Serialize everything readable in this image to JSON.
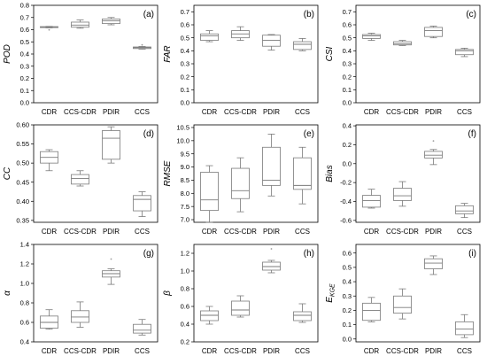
{
  "chart_data": [
    {
      "type": "box",
      "panel": "(a)",
      "ylabel": "POD",
      "categories": [
        "CDR",
        "CCS-CDR",
        "PDIR",
        "CCS"
      ],
      "ylim": [
        0.0,
        0.8
      ],
      "yticks": [
        "0.0",
        "0.1",
        "0.2",
        "0.3",
        "0.4",
        "0.5",
        "0.6",
        "0.7",
        "0.8"
      ],
      "boxes": [
        {
          "category": "CDR",
          "min": 0.615,
          "q1": 0.617,
          "median": 0.622,
          "q3": 0.625,
          "max": 0.627,
          "outliers": [
            0.598
          ]
        },
        {
          "category": "CCS-CDR",
          "min": 0.612,
          "q1": 0.62,
          "median": 0.638,
          "q3": 0.662,
          "max": 0.68,
          "outliers": []
        },
        {
          "category": "PDIR",
          "min": 0.64,
          "q1": 0.65,
          "median": 0.672,
          "q3": 0.688,
          "max": 0.7,
          "outliers": []
        },
        {
          "category": "CCS",
          "min": 0.44,
          "q1": 0.445,
          "median": 0.452,
          "q3": 0.458,
          "max": 0.462,
          "outliers": [
            0.475
          ]
        }
      ]
    },
    {
      "type": "box",
      "panel": "(b)",
      "ylabel": "FAR",
      "categories": [
        "CDR",
        "CCS-CDR",
        "PDIR",
        "CCS"
      ],
      "ylim": [
        0.0,
        0.75
      ],
      "yticks": [
        "0.0",
        "0.1",
        "0.2",
        "0.3",
        "0.4",
        "0.5",
        "0.6",
        "0.7"
      ],
      "boxes": [
        {
          "category": "CDR",
          "min": 0.47,
          "q1": 0.48,
          "median": 0.515,
          "q3": 0.53,
          "max": 0.555,
          "outliers": []
        },
        {
          "category": "CCS-CDR",
          "min": 0.48,
          "q1": 0.5,
          "median": 0.53,
          "q3": 0.555,
          "max": 0.585,
          "outliers": []
        },
        {
          "category": "PDIR",
          "min": 0.405,
          "q1": 0.435,
          "median": 0.48,
          "q3": 0.52,
          "max": 0.525,
          "outliers": []
        },
        {
          "category": "CCS",
          "min": 0.4,
          "q1": 0.41,
          "median": 0.45,
          "q3": 0.47,
          "max": 0.495,
          "outliers": []
        }
      ]
    },
    {
      "type": "box",
      "panel": "(c)",
      "ylabel": "CSI",
      "categories": [
        "CDR",
        "CCS-CDR",
        "PDIR",
        "CCS"
      ],
      "ylim": [
        0.0,
        0.75
      ],
      "yticks": [
        "0.0",
        "0.1",
        "0.2",
        "0.3",
        "0.4",
        "0.5",
        "0.6",
        "0.7"
      ],
      "boxes": [
        {
          "category": "CDR",
          "min": 0.48,
          "q1": 0.495,
          "median": 0.515,
          "q3": 0.525,
          "max": 0.535,
          "outliers": []
        },
        {
          "category": "CCS-CDR",
          "min": 0.44,
          "q1": 0.445,
          "median": 0.455,
          "q3": 0.47,
          "max": 0.48,
          "outliers": []
        },
        {
          "category": "PDIR",
          "min": 0.5,
          "q1": 0.51,
          "median": 0.555,
          "q3": 0.58,
          "max": 0.59,
          "outliers": []
        },
        {
          "category": "CCS",
          "min": 0.355,
          "q1": 0.37,
          "median": 0.4,
          "q3": 0.41,
          "max": 0.42,
          "outliers": []
        }
      ]
    },
    {
      "type": "box",
      "panel": "(d)",
      "ylabel": "CC",
      "categories": [
        "CDR",
        "CCS-CDR",
        "PDIR",
        "CCS"
      ],
      "ylim": [
        0.345,
        0.6
      ],
      "yticks": [
        "0.35",
        "0.40",
        "0.45",
        "0.50",
        "0.55",
        "0.60"
      ],
      "boxes": [
        {
          "category": "CDR",
          "min": 0.48,
          "q1": 0.5,
          "median": 0.515,
          "q3": 0.53,
          "max": 0.535,
          "outliers": []
        },
        {
          "category": "CCS-CDR",
          "min": 0.44,
          "q1": 0.445,
          "median": 0.46,
          "q3": 0.47,
          "max": 0.48,
          "outliers": []
        },
        {
          "category": "PDIR",
          "min": 0.5,
          "q1": 0.51,
          "median": 0.565,
          "q3": 0.585,
          "max": 0.595,
          "outliers": []
        },
        {
          "category": "CCS",
          "min": 0.36,
          "q1": 0.375,
          "median": 0.405,
          "q3": 0.415,
          "max": 0.425,
          "outliers": []
        }
      ]
    },
    {
      "type": "box",
      "panel": "(e)",
      "ylabel": "RMSE",
      "categories": [
        "CDR",
        "CCS-CDR",
        "PDIR",
        "CCS"
      ],
      "ylim": [
        6.9,
        10.6
      ],
      "yticks": [
        "7.0",
        "7.5",
        "8.0",
        "8.5",
        "9.0",
        "9.5",
        "10.0",
        "10.5"
      ],
      "boxes": [
        {
          "category": "CDR",
          "min": 6.9,
          "q1": 7.35,
          "median": 7.75,
          "q3": 8.8,
          "max": 9.05,
          "outliers": []
        },
        {
          "category": "CCS-CDR",
          "min": 7.3,
          "q1": 7.8,
          "median": 8.1,
          "q3": 8.95,
          "max": 9.35,
          "outliers": []
        },
        {
          "category": "PDIR",
          "min": 7.9,
          "q1": 8.3,
          "median": 8.5,
          "q3": 9.75,
          "max": 10.25,
          "outliers": []
        },
        {
          "category": "CCS",
          "min": 7.6,
          "q1": 8.15,
          "median": 8.3,
          "q3": 9.35,
          "max": 9.75,
          "outliers": []
        }
      ]
    },
    {
      "type": "box",
      "panel": "(f)",
      "ylabel": "Bias",
      "categories": [
        "CDR",
        "CCS-CDR",
        "PDIR",
        "CCS"
      ],
      "ylim": [
        -0.62,
        0.41
      ],
      "yticks": [
        "-0.6",
        "-0.4",
        "-0.2",
        "0.0",
        "0.2",
        "0.4"
      ],
      "boxes": [
        {
          "category": "CDR",
          "min": -0.47,
          "q1": -0.46,
          "median": -0.39,
          "q3": -0.335,
          "max": -0.27,
          "outliers": []
        },
        {
          "category": "CCS-CDR",
          "min": -0.45,
          "q1": -0.39,
          "median": -0.34,
          "q3": -0.26,
          "max": -0.19,
          "outliers": []
        },
        {
          "category": "PDIR",
          "min": -0.01,
          "q1": 0.06,
          "median": 0.09,
          "q3": 0.13,
          "max": 0.15,
          "outliers": [
            0.24
          ]
        },
        {
          "category": "CCS",
          "min": -0.57,
          "q1": -0.53,
          "median": -0.5,
          "q3": -0.445,
          "max": -0.42,
          "outliers": []
        }
      ]
    },
    {
      "type": "box",
      "panel": "(g)",
      "ylabel": "α",
      "categories": [
        "CDR",
        "CCS-CDR",
        "PDIR",
        "CCS"
      ],
      "ylim": [
        0.4,
        1.4
      ],
      "yticks": [
        "0.4",
        "0.6",
        "0.8",
        "1.0",
        "1.2",
        "1.4"
      ],
      "boxes": [
        {
          "category": "CDR",
          "min": 0.53,
          "q1": 0.54,
          "median": 0.6,
          "q3": 0.665,
          "max": 0.73,
          "outliers": []
        },
        {
          "category": "CCS-CDR",
          "min": 0.55,
          "q1": 0.6,
          "median": 0.655,
          "q3": 0.72,
          "max": 0.81,
          "outliers": []
        },
        {
          "category": "PDIR",
          "min": 0.99,
          "q1": 1.065,
          "median": 1.1,
          "q3": 1.13,
          "max": 1.15,
          "outliers": [
            1.25
          ]
        },
        {
          "category": "CCS",
          "min": 0.47,
          "q1": 0.49,
          "median": 0.52,
          "q3": 0.58,
          "max": 0.63,
          "outliers": []
        }
      ]
    },
    {
      "type": "box",
      "panel": "(h)",
      "ylabel": "β",
      "categories": [
        "CDR",
        "CCS-CDR",
        "PDIR",
        "CCS"
      ],
      "ylim": [
        0.2,
        1.3
      ],
      "yticks": [
        "0.2",
        "0.4",
        "0.6",
        "0.8",
        "1.0",
        "1.2"
      ],
      "boxes": [
        {
          "category": "CDR",
          "min": 0.4,
          "q1": 0.44,
          "median": 0.5,
          "q3": 0.55,
          "max": 0.6,
          "outliers": []
        },
        {
          "category": "CCS-CDR",
          "min": 0.48,
          "q1": 0.5,
          "median": 0.56,
          "q3": 0.66,
          "max": 0.72,
          "outliers": []
        },
        {
          "category": "PDIR",
          "min": 0.98,
          "q1": 1.01,
          "median": 1.05,
          "q3": 1.1,
          "max": 1.12,
          "outliers": [
            1.25
          ]
        },
        {
          "category": "CCS",
          "min": 0.42,
          "q1": 0.44,
          "median": 0.5,
          "q3": 0.54,
          "max": 0.63,
          "outliers": []
        }
      ]
    },
    {
      "type": "box",
      "panel": "(i)",
      "ylabel": "E_KGE",
      "categories": [
        "CDR",
        "CCS-CDR",
        "PDIR",
        "CCS"
      ],
      "ylim": [
        -0.02,
        0.66
      ],
      "yticks": [
        "0.0",
        "0.1",
        "0.2",
        "0.3",
        "0.4",
        "0.5",
        "0.6"
      ],
      "boxes": [
        {
          "category": "CDR",
          "min": 0.12,
          "q1": 0.13,
          "median": 0.2,
          "q3": 0.25,
          "max": 0.29,
          "outliers": []
        },
        {
          "category": "CCS-CDR",
          "min": 0.14,
          "q1": 0.18,
          "median": 0.22,
          "q3": 0.3,
          "max": 0.35,
          "outliers": []
        },
        {
          "category": "PDIR",
          "min": 0.45,
          "q1": 0.49,
          "median": 0.53,
          "q3": 0.56,
          "max": 0.58,
          "outliers": []
        },
        {
          "category": "CCS",
          "min": 0.01,
          "q1": 0.03,
          "median": 0.07,
          "q3": 0.12,
          "max": 0.17,
          "outliers": []
        }
      ]
    }
  ]
}
